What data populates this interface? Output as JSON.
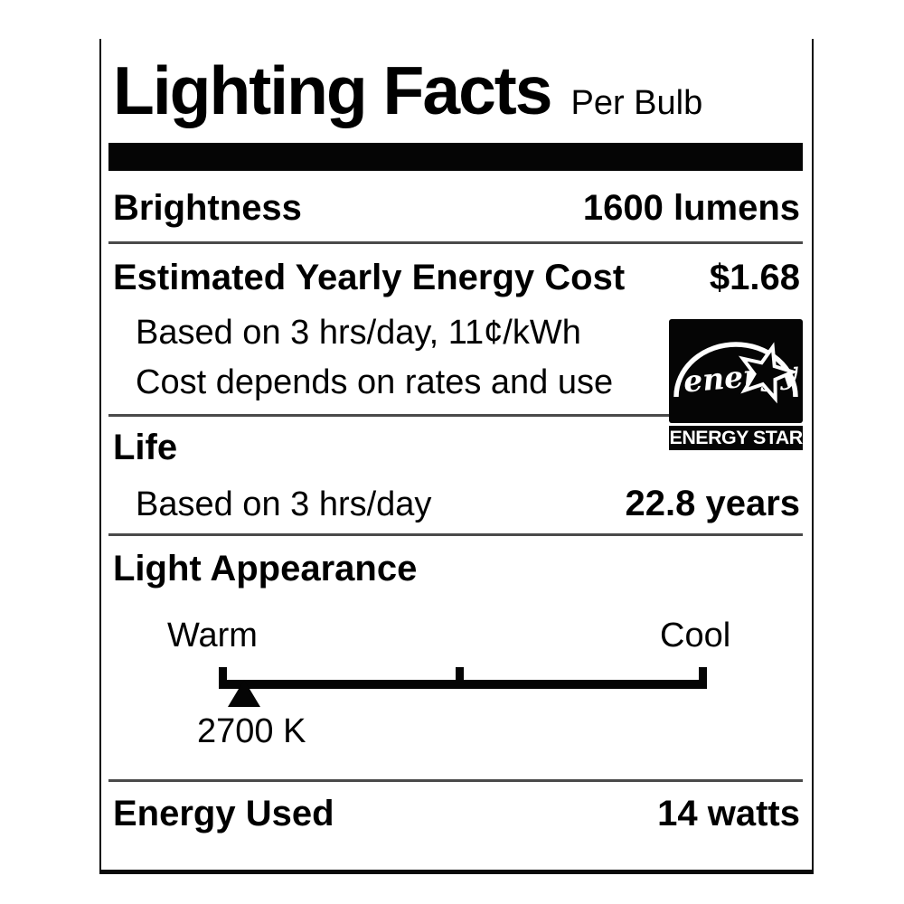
{
  "title": "Lighting Facts",
  "subtitle": "Per Bulb",
  "brightness": {
    "label": "Brightness",
    "value": "1600 lumens"
  },
  "energy_cost": {
    "label": "Estimated Yearly Energy Cost",
    "value": "$1.68",
    "basis": "Based on 3 hrs/day, 11¢/kWh",
    "disclaimer": "Cost depends on rates and use"
  },
  "energy_star": {
    "logo_script": "energy",
    "caption": "ENERGY STAR"
  },
  "life": {
    "label": "Life",
    "basis": "Based on 3 hrs/day",
    "value": "22.8 years"
  },
  "light_appearance": {
    "label": "Light Appearance",
    "left_end": "Warm",
    "right_end": "Cool",
    "marker_value": "2700 K",
    "marker_position_pct": 5.2
  },
  "energy_used": {
    "label": "Energy Used",
    "value": "14 watts"
  },
  "colors": {
    "text": "#000000",
    "bar": "#050505",
    "divider": "#4a4a4a",
    "background": "#ffffff"
  }
}
